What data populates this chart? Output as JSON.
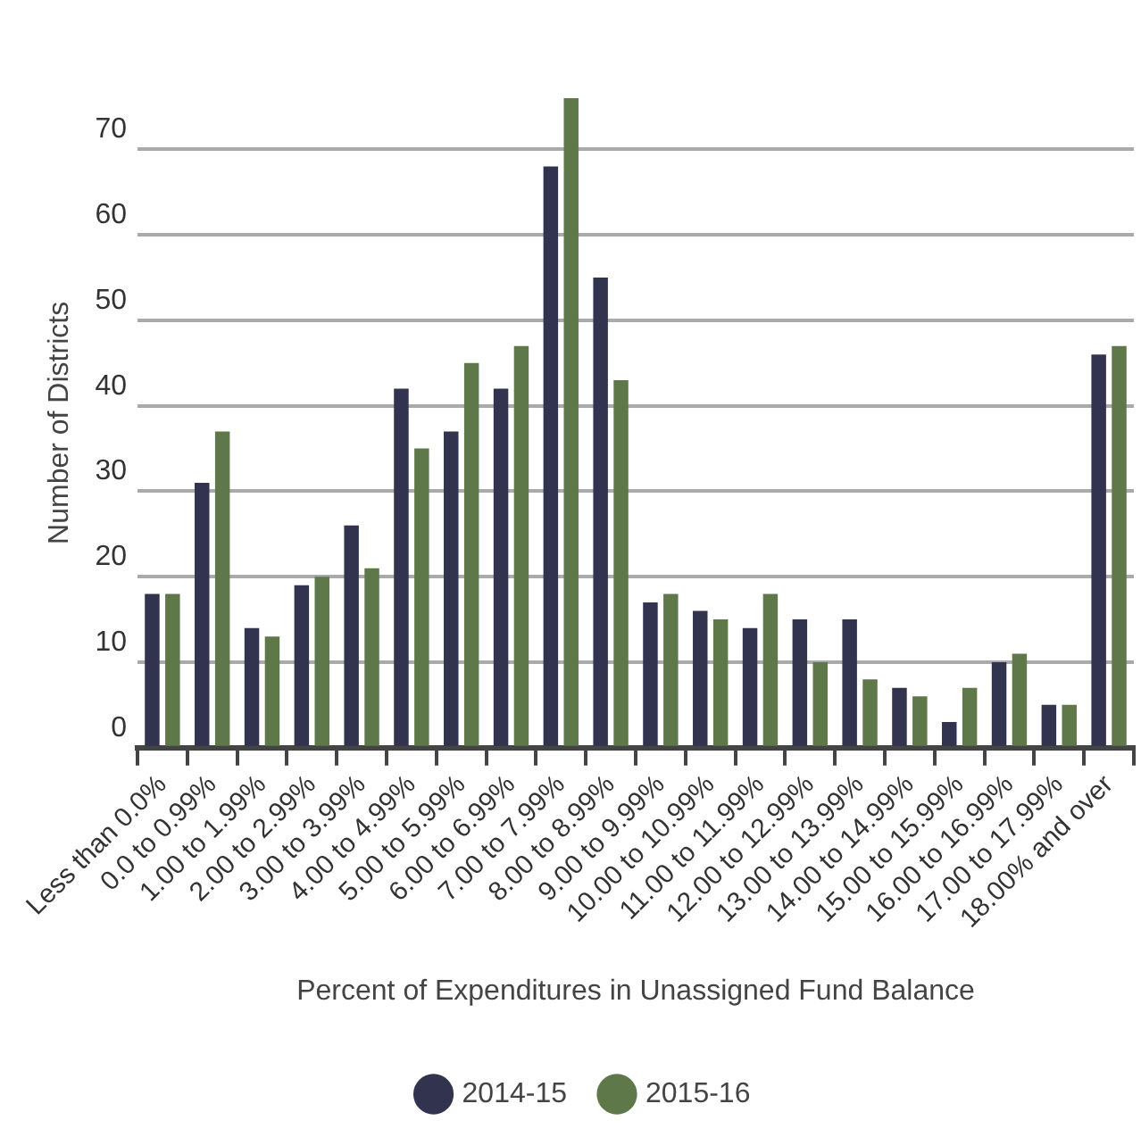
{
  "chart_data": {
    "type": "bar",
    "xlabel": "Percent of Expenditures in Unassigned Fund Balance",
    "ylabel": "Number of Districts",
    "categories": [
      "Less than 0.0%",
      "0.0 to 0.99%",
      "1.00 to 1.99%",
      "2.00 to 2.99%",
      "3.00 to 3.99%",
      "4.00 to 4.99%",
      "5.00 to 5.99%",
      "6.00 to 6.99%",
      "7.00 to 7.99%",
      "8.00 to 8.99%",
      "9.00 to 9.99%",
      "10.00 to 10.99%",
      "11.00 to 11.99%",
      "12.00 to 12.99%",
      "13.00 to 13.99%",
      "14.00 to 14.99%",
      "15.00 to 15.99%",
      "16.00 to 16.99%",
      "17.00 to 17.99%",
      "18.00% and over"
    ],
    "series": [
      {
        "name": "2014-15",
        "color": "#32344f",
        "values": [
          18,
          31,
          14,
          19,
          26,
          42,
          37,
          42,
          68,
          55,
          17,
          16,
          14,
          15,
          15,
          7,
          3,
          10,
          5,
          46
        ]
      },
      {
        "name": "2015-16",
        "color": "#5e784a",
        "values": [
          18,
          37,
          13,
          20,
          21,
          35,
          45,
          47,
          76,
          43,
          18,
          15,
          18,
          10,
          8,
          6,
          7,
          11,
          5,
          47
        ]
      }
    ],
    "ylim": [
      0,
      76
    ],
    "yticks": [
      0,
      10,
      20,
      30,
      40,
      50,
      60,
      70
    ],
    "grid": "y",
    "legend": "bottom"
  }
}
